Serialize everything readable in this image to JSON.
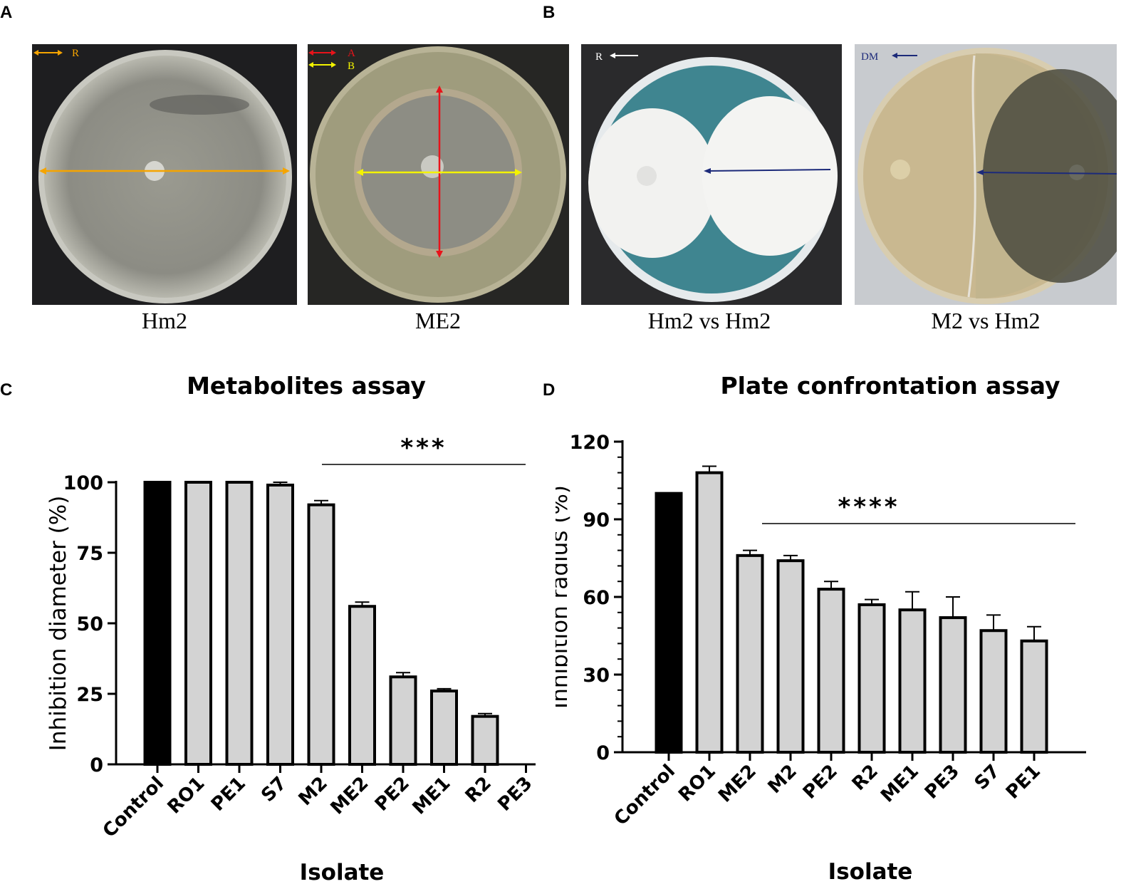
{
  "panels": {
    "a": "A",
    "b": "B",
    "c": "C",
    "d": "D"
  },
  "photos": [
    {
      "caption": "Hm2",
      "legend": [
        {
          "label": "R",
          "color": "#f5a400"
        }
      ]
    },
    {
      "caption": "ME2",
      "legend": [
        {
          "label": "A",
          "color": "#e8131a"
        },
        {
          "label": "B",
          "color": "#f3f300"
        }
      ]
    },
    {
      "caption": "Hm2 vs Hm2",
      "legend": [
        {
          "label": "R",
          "color": "#ffffff"
        }
      ]
    },
    {
      "caption": "M2 vs Hm2",
      "legend": [
        {
          "label": "DM",
          "color": "#1c2a7a"
        }
      ]
    }
  ],
  "colors": {
    "control_bar": "#000000",
    "isolate_bar": "#d3d3d3"
  },
  "chart_data": [
    {
      "type": "bar",
      "title": "Metabolites assay",
      "xlabel": "Isolate",
      "ylabel": "Inhibition diameter (%)",
      "ylim": [
        0,
        100
      ],
      "yticks": [
        "0",
        "25",
        "50",
        "75",
        "100"
      ],
      "categories": [
        "Control",
        "RO1",
        "PE1",
        "S7",
        "M2",
        "ME2",
        "PE2",
        "ME1",
        "R2",
        "PE3"
      ],
      "values": [
        100,
        100,
        100,
        99,
        92,
        56,
        31,
        26,
        17,
        0
      ],
      "errors": [
        0,
        0,
        0,
        1,
        1.5,
        1.5,
        1.5,
        0.8,
        1,
        0
      ],
      "significance": "***"
    },
    {
      "type": "bar",
      "title": "Plate confrontation assay",
      "xlabel": "Isolate",
      "ylabel": "Inhibition radius (%)",
      "ylim": [
        0,
        120
      ],
      "yticks": [
        "0",
        "30",
        "60",
        "90",
        "120"
      ],
      "categories": [
        "Control",
        "RO1",
        "ME2",
        "M2",
        "PE2",
        "R2",
        "ME1",
        "PE3",
        "S7",
        "PE1"
      ],
      "values": [
        100,
        108,
        76,
        74,
        63,
        57,
        55,
        52,
        47,
        43
      ],
      "errors": [
        0,
        2.5,
        2,
        2,
        3,
        2,
        7,
        8,
        6,
        5.5
      ],
      "significance": "****"
    }
  ]
}
